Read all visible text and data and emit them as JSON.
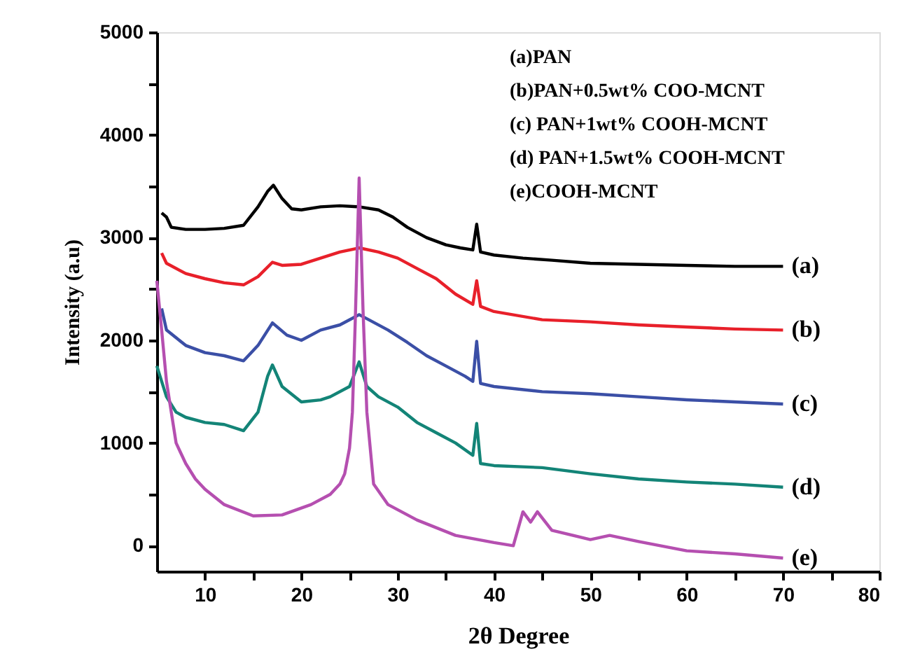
{
  "chart_data": {
    "type": "line",
    "xlabel": "2θ Degree",
    "ylabel": "Intensity (a.u)",
    "xlim": [
      5,
      80
    ],
    "ylim": [
      -250,
      5000
    ],
    "xticks": [
      10,
      {
        "value": 15,
        "label": null
      },
      20,
      {
        "value": 25,
        "label": null
      },
      30,
      {
        "value": 35,
        "label": null
      },
      40,
      {
        "value": 45,
        "label": null
      },
      50,
      {
        "value": 55,
        "label": null
      },
      60,
      {
        "value": 65,
        "label": null
      },
      70,
      {
        "value": 75,
        "label": null
      },
      80
    ],
    "yticks": [
      0,
      {
        "value": 500,
        "label": null
      },
      1000,
      {
        "value": 1500,
        "label": null
      },
      2000,
      {
        "value": 2500,
        "label": null
      },
      3000,
      {
        "value": 3500,
        "label": null
      },
      4000,
      {
        "value": 4500,
        "label": null
      },
      5000
    ],
    "grid": false,
    "marker": "none",
    "line_style": "solid",
    "annotations": [
      "(a)PAN",
      "(b)PAN+0.5wt% COO-MCNT",
      "(c) PAN+1wt% COOH-MCNT",
      "(d) PAN+1.5wt% COOH-MCNT",
      "(e)COOH-MCNT"
    ],
    "series": [
      {
        "name": "(a)",
        "color": "#000000",
        "x": [
          5.5,
          6,
          6.5,
          8,
          10,
          12,
          14,
          15.5,
          16.5,
          17.1,
          18,
          19,
          20,
          22,
          24,
          26,
          28,
          29.5,
          31,
          33,
          35,
          36.5,
          37.8,
          38.2,
          38.6,
          40,
          43,
          46,
          50,
          55,
          60,
          65,
          70
        ],
        "values": [
          3240,
          3200,
          3100,
          3080,
          3080,
          3090,
          3120,
          3300,
          3450,
          3510,
          3380,
          3280,
          3270,
          3300,
          3310,
          3300,
          3270,
          3200,
          3100,
          3000,
          2930,
          2900,
          2880,
          3130,
          2860,
          2830,
          2800,
          2780,
          2750,
          2740,
          2730,
          2720,
          2720
        ]
      },
      {
        "name": "(b)",
        "color": "#e8202a",
        "x": [
          5.5,
          6,
          8,
          10,
          12,
          14,
          15.5,
          17,
          18,
          20,
          22,
          24,
          26,
          28,
          30,
          32,
          34,
          36,
          37.8,
          38.2,
          38.6,
          40,
          45,
          50,
          55,
          60,
          65,
          70
        ],
        "values": [
          2850,
          2750,
          2650,
          2600,
          2560,
          2540,
          2620,
          2760,
          2730,
          2740,
          2800,
          2860,
          2900,
          2860,
          2800,
          2700,
          2600,
          2450,
          2350,
          2580,
          2330,
          2280,
          2200,
          2180,
          2150,
          2130,
          2110,
          2100
        ]
      },
      {
        "name": "(c)",
        "color": "#3b4fa6",
        "x": [
          5.5,
          6,
          8,
          10,
          12,
          14,
          15.5,
          17,
          18.5,
          20,
          22,
          24,
          26,
          27,
          29,
          31,
          33,
          35,
          37,
          37.8,
          38.2,
          38.6,
          40,
          45,
          50,
          55,
          60,
          65,
          70
        ],
        "values": [
          2310,
          2100,
          1950,
          1880,
          1850,
          1800,
          1950,
          2170,
          2050,
          2000,
          2100,
          2150,
          2250,
          2200,
          2100,
          1980,
          1850,
          1750,
          1650,
          1600,
          1990,
          1580,
          1550,
          1500,
          1480,
          1450,
          1420,
          1400,
          1380
        ]
      },
      {
        "name": "(d)",
        "color": "#138477",
        "x": [
          5,
          6,
          7,
          8,
          10,
          12,
          14,
          15.5,
          16.5,
          17,
          18,
          20,
          22,
          23,
          25,
          26,
          26.8,
          28,
          30,
          32,
          34,
          36,
          37.8,
          38.2,
          38.6,
          40,
          45,
          50,
          55,
          60,
          65,
          70
        ],
        "values": [
          1750,
          1450,
          1300,
          1250,
          1200,
          1180,
          1120,
          1300,
          1650,
          1760,
          1550,
          1400,
          1420,
          1450,
          1550,
          1790,
          1550,
          1450,
          1350,
          1200,
          1100,
          1000,
          880,
          1190,
          800,
          780,
          760,
          700,
          650,
          620,
          600,
          570
        ]
      },
      {
        "name": "(e)",
        "color": "#b54fb0",
        "x": [
          5,
          5.5,
          6,
          7,
          8,
          9,
          10,
          12,
          15,
          18,
          21,
          23,
          24,
          24.5,
          25,
          25.3,
          25.6,
          26,
          26.4,
          26.8,
          27.5,
          29,
          32,
          36,
          40,
          42,
          43,
          43.8,
          44.5,
          46,
          50,
          52,
          55,
          60,
          65,
          70
        ],
        "values": [
          2580,
          2100,
          1600,
          1000,
          800,
          650,
          550,
          400,
          290,
          300,
          400,
          500,
          600,
          700,
          950,
          1300,
          2200,
          3580,
          2300,
          1300,
          600,
          400,
          250,
          100,
          30,
          0,
          330,
          230,
          330,
          150,
          60,
          100,
          40,
          -50,
          -80,
          -120
        ]
      }
    ]
  }
}
